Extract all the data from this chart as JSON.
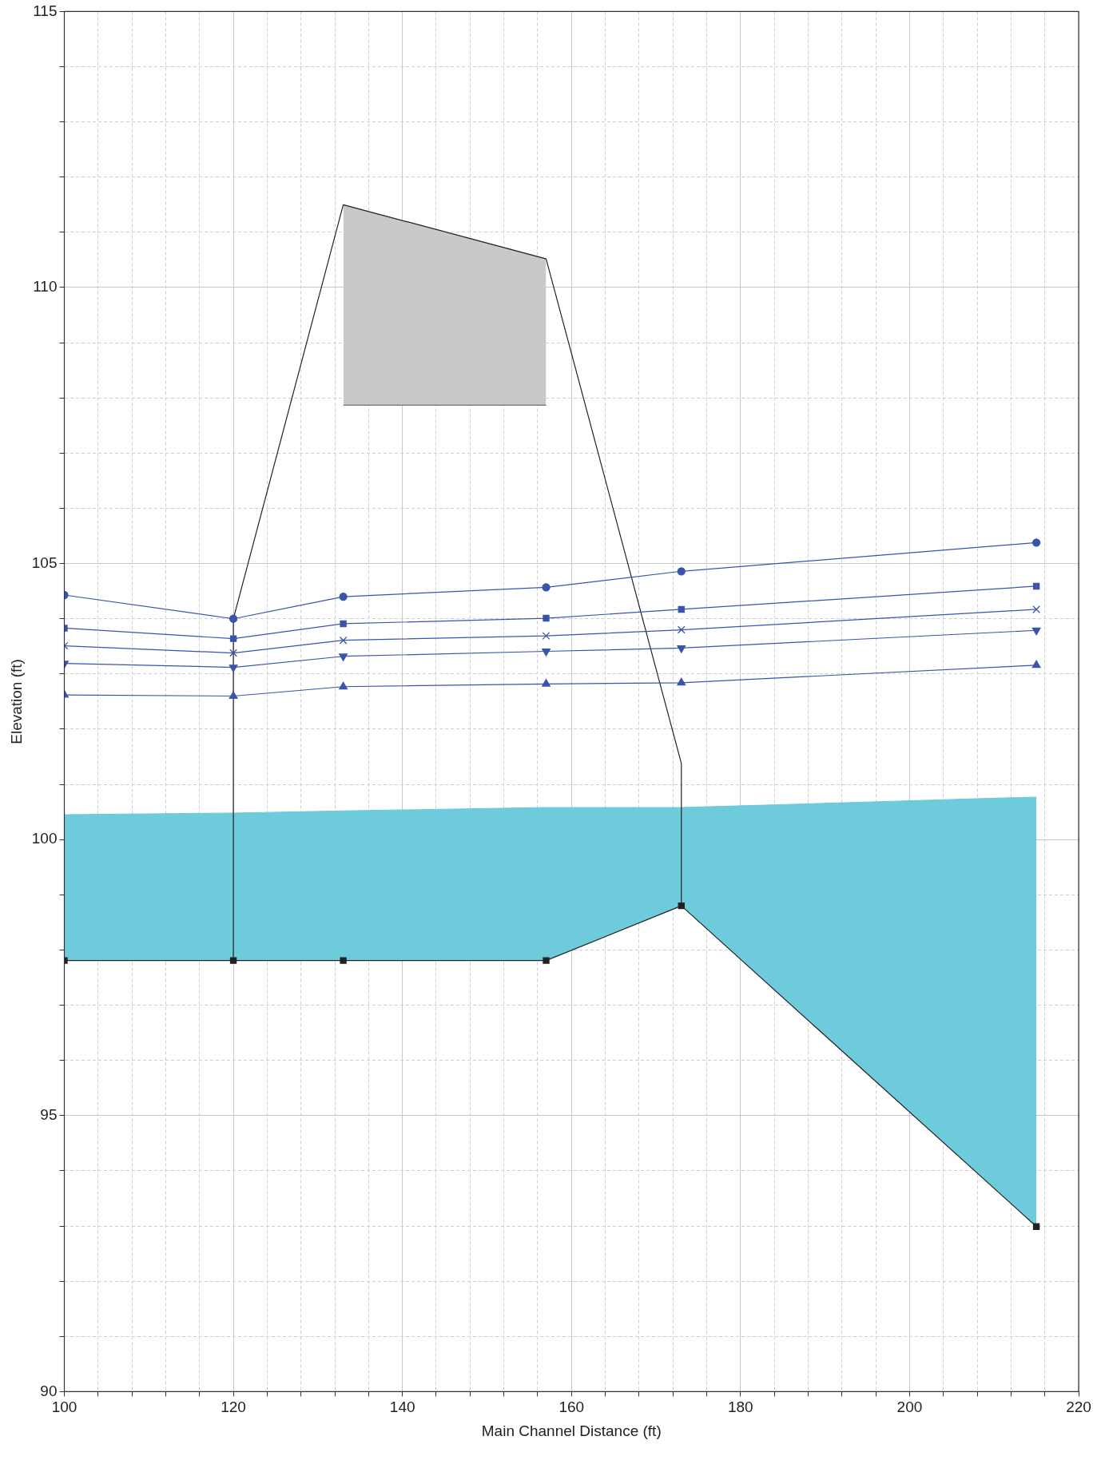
{
  "chart_data": {
    "type": "line",
    "xlabel": "Main Channel Distance (ft)",
    "ylabel": "Elevation (ft)",
    "xlim": [
      100,
      220
    ],
    "xticks": [
      100,
      {
        "value": 104,
        "label": null
      },
      {
        "value": 108,
        "label": null
      },
      {
        "value": 112,
        "label": null
      },
      {
        "value": 116,
        "label": null
      },
      120,
      {
        "value": 124,
        "label": null
      },
      {
        "value": 128,
        "label": null
      },
      {
        "value": 132,
        "label": null
      },
      {
        "value": 136,
        "label": null
      },
      140,
      {
        "value": 144,
        "label": null
      },
      {
        "value": 148,
        "label": null
      },
      {
        "value": 152,
        "label": null
      },
      {
        "value": 156,
        "label": null
      },
      160,
      {
        "value": 164,
        "label": null
      },
      {
        "value": 168,
        "label": null
      },
      {
        "value": 172,
        "label": null
      },
      {
        "value": 176,
        "label": null
      },
      180,
      {
        "value": 184,
        "label": null
      },
      {
        "value": 188,
        "label": null
      },
      {
        "value": 192,
        "label": null
      },
      {
        "value": 196,
        "label": null
      },
      200,
      {
        "value": 204,
        "label": null
      },
      {
        "value": 208,
        "label": null
      },
      {
        "value": 212,
        "label": null
      },
      {
        "value": 216,
        "label": null
      },
      220
    ],
    "ylim": [
      90,
      115
    ],
    "yticks": [
      90,
      {
        "value": 91,
        "label": null
      },
      {
        "value": 92,
        "label": null
      },
      {
        "value": 93,
        "label": null
      },
      {
        "value": 94,
        "label": null
      },
      95,
      {
        "value": 96,
        "label": null
      },
      {
        "value": 97,
        "label": null
      },
      {
        "value": 98,
        "label": null
      },
      {
        "value": 99,
        "label": null
      },
      100,
      {
        "value": 101,
        "label": null
      },
      {
        "value": 102,
        "label": null
      },
      {
        "value": 103,
        "label": null
      },
      {
        "value": 104,
        "label": null
      },
      105,
      {
        "value": 106,
        "label": null
      },
      {
        "value": 107,
        "label": null
      },
      {
        "value": 108,
        "label": null
      },
      {
        "value": 109,
        "label": null
      },
      110,
      {
        "value": 111,
        "label": null
      },
      {
        "value": 112,
        "label": null
      },
      {
        "value": 113,
        "label": null
      },
      {
        "value": 114,
        "label": null
      },
      115
    ],
    "grid": true,
    "legend": false,
    "series": [
      {
        "type": "area",
        "color": "#6ecbdc",
        "x": [
          100,
          120,
          133,
          157,
          173,
          215
        ],
        "values": [
          100.45,
          100.48,
          100.52,
          100.58,
          100.58,
          100.77
        ]
      },
      {
        "color": "#222222",
        "x": [
          100,
          120,
          133,
          157,
          173,
          215
        ],
        "values": [
          97.81,
          97.81,
          97.81,
          97.81,
          98.8,
          92.99
        ],
        "marker": "square"
      },
      {
        "type": "area",
        "color": "#c8c9cb",
        "x": [
          133,
          157
        ],
        "values": [
          111.5,
          110.52
        ]
      },
      {
        "color": "#555555",
        "x": [
          133,
          157
        ],
        "values": [
          107.87,
          107.87
        ],
        "marker": "none"
      },
      {
        "color": "#222222",
        "x": [
          120,
          120,
          133,
          157,
          173,
          173
        ],
        "values": [
          97.81,
          104.0,
          111.5,
          110.52,
          101.38,
          98.8
        ],
        "marker": "none"
      },
      {
        "color": "#3a55a8",
        "x": [
          100,
          120,
          133,
          157,
          173,
          215
        ],
        "values": [
          104.43,
          104.0,
          104.4,
          104.57,
          104.86,
          105.38
        ],
        "marker": "circle"
      },
      {
        "color": "#3a55a8",
        "x": [
          100,
          120,
          133,
          157,
          173,
          215
        ],
        "values": [
          103.83,
          103.64,
          103.91,
          104.01,
          104.17,
          104.59
        ],
        "marker": "square"
      },
      {
        "color": "#3a55a8",
        "x": [
          100,
          120,
          133,
          157,
          173,
          215
        ],
        "values": [
          103.51,
          103.38,
          103.61,
          103.69,
          103.8,
          104.17
        ],
        "marker": "cross"
      },
      {
        "color": "#3a55a8",
        "x": [
          100,
          120,
          133,
          157,
          173,
          215
        ],
        "values": [
          103.19,
          103.12,
          103.32,
          103.41,
          103.47,
          103.79
        ],
        "marker": "triangle-down"
      },
      {
        "color": "#3a55a8",
        "x": [
          100,
          120,
          133,
          157,
          173,
          215
        ],
        "values": [
          102.62,
          102.6,
          102.77,
          102.82,
          102.84,
          103.16
        ],
        "marker": "triangle"
      }
    ]
  }
}
